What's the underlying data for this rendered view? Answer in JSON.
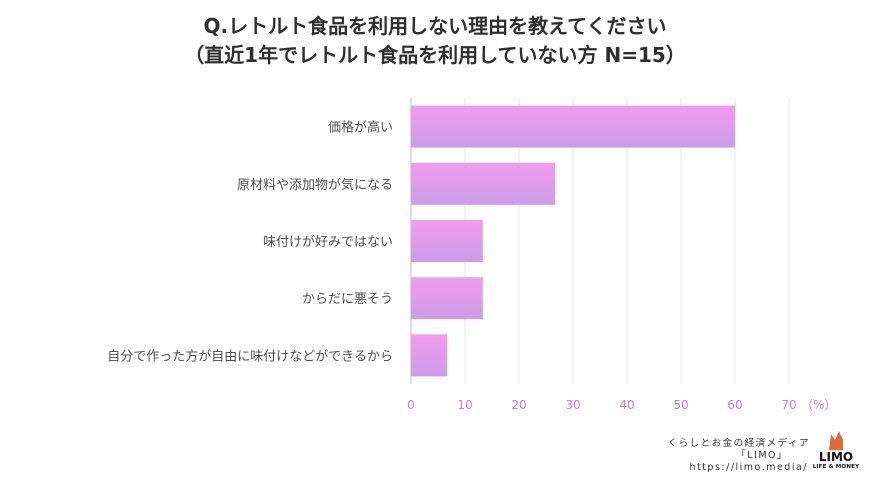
{
  "header": {
    "title_line1": "Q.レトルト食品を利用しない理由を教えてください",
    "title_line2": "（直近1年でレトルト食品を利用していない方 N=15）"
  },
  "chart_data": {
    "type": "bar",
    "orientation": "horizontal",
    "categories": [
      "価格が高い",
      "原材料や添加物が気になる",
      "味付けが好みではない",
      "からだに悪そう",
      "自分で作った方が自由に味付けなどができるから"
    ],
    "values": [
      60,
      26.7,
      13.3,
      13.3,
      6.7
    ],
    "xlim": [
      0,
      70
    ],
    "xticks": [
      0,
      10,
      20,
      30,
      40,
      50,
      60,
      70
    ],
    "unit": "（%）",
    "grid": true,
    "bar_gradient": [
      "#f49af0",
      "#c99ee6"
    ]
  },
  "footer": {
    "line1": "くらしとお金の経済メディア",
    "line2": "「LIMO」",
    "line3": "https://limo.media/"
  },
  "logo": {
    "name": "LIMO",
    "sub": "LIFE & MONEY",
    "color": "#e06a3a"
  }
}
